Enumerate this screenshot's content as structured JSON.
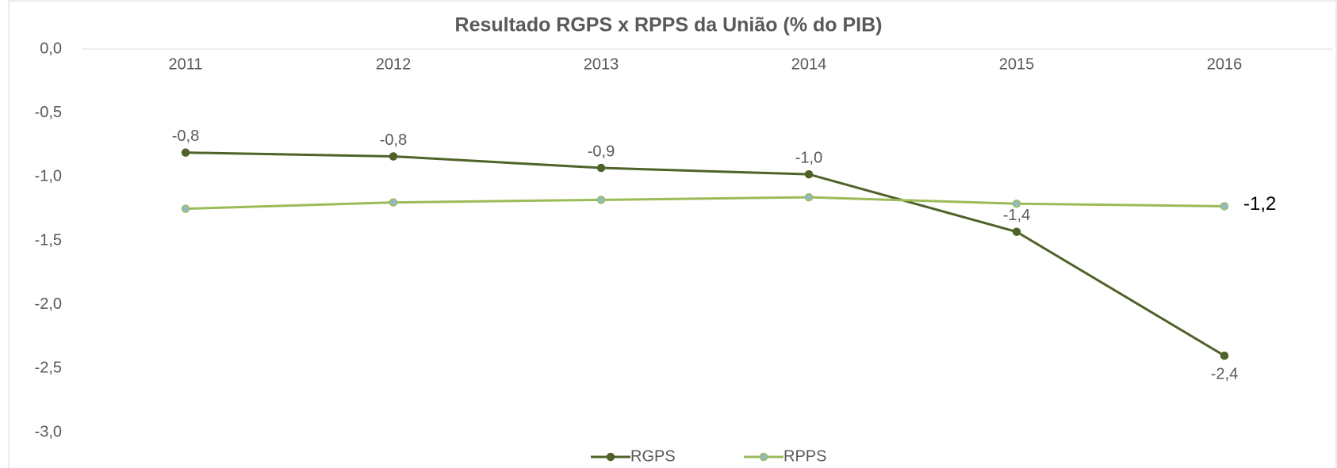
{
  "chart_data": {
    "type": "line",
    "title": "Resultado RGPS x RPPS da União (% do PIB)",
    "categories": [
      "2011",
      "2012",
      "2013",
      "2014",
      "2015",
      "2016"
    ],
    "series": [
      {
        "name": "RGPS",
        "color": "#4f6228",
        "marker_color": "#4f6228",
        "values": [
          -0.81,
          -0.84,
          -0.93,
          -0.98,
          -1.43,
          -2.4
        ],
        "value_labels": [
          "-0,8",
          "-0,8",
          "-0,9",
          "-1,0",
          "-1,4",
          "-2,4"
        ]
      },
      {
        "name": "RPPS",
        "color": "#9bbb59",
        "marker_color": "#93b9c9",
        "values": [
          -1.25,
          -1.2,
          -1.18,
          -1.16,
          -1.21,
          -1.23
        ],
        "value_labels": [
          null,
          null,
          null,
          null,
          null,
          "-1,2"
        ]
      }
    ],
    "ylim": [
      -3.0,
      0.0
    ],
    "yticks": [
      {
        "value": 0,
        "label": "0,0"
      },
      {
        "value": -0.5,
        "label": "-0,5"
      },
      {
        "value": -1,
        "label": "-1,0"
      },
      {
        "value": -1.5,
        "label": "-1,5"
      },
      {
        "value": -2,
        "label": "-2,0"
      },
      {
        "value": -2.5,
        "label": "-2,5"
      },
      {
        "value": -3,
        "label": "-3,0"
      }
    ],
    "grid": false,
    "legend": "bottom"
  }
}
